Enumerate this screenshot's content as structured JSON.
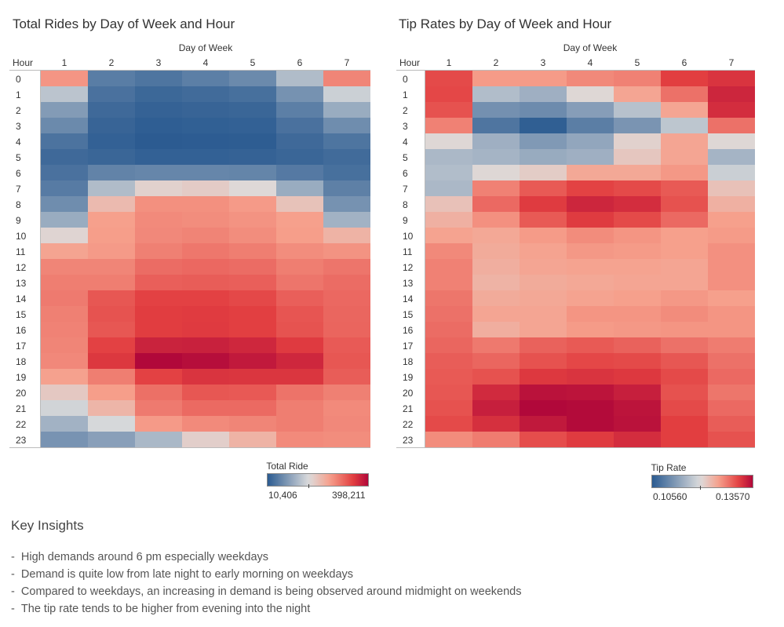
{
  "chart_data": [
    {
      "type": "heatmap",
      "title": "Total Rides by Day of Week and Hour",
      "xlabel": "Day of Week",
      "ylabel": "Hour",
      "columns": [
        "1",
        "2",
        "3",
        "4",
        "5",
        "6",
        "7"
      ],
      "rows": [
        "0",
        "1",
        "2",
        "3",
        "4",
        "5",
        "6",
        "7",
        "8",
        "9",
        "10",
        "11",
        "12",
        "13",
        "14",
        "15",
        "16",
        "17",
        "18",
        "19",
        "20",
        "21",
        "22",
        "23"
      ],
      "values": [
        [
          260000,
          52000,
          42000,
          55000,
          68000,
          130000,
          275000
        ],
        [
          140000,
          38000,
          26000,
          30000,
          36000,
          78000,
          155000
        ],
        [
          90000,
          28000,
          19000,
          22000,
          24000,
          55000,
          110000
        ],
        [
          68000,
          22000,
          14000,
          16000,
          18000,
          38000,
          72000
        ],
        [
          40000,
          18000,
          11000,
          12000,
          13000,
          28000,
          42000
        ],
        [
          28000,
          24000,
          18000,
          18000,
          19000,
          24000,
          30000
        ],
        [
          38000,
          60000,
          64000,
          64000,
          62000,
          48000,
          36000
        ],
        [
          50000,
          130000,
          185000,
          192000,
          175000,
          110000,
          56000
        ],
        [
          72000,
          215000,
          265000,
          265000,
          255000,
          205000,
          78000
        ],
        [
          110000,
          250000,
          270000,
          268000,
          262000,
          250000,
          118000
        ],
        [
          180000,
          252000,
          272000,
          276000,
          268000,
          252000,
          225000
        ],
        [
          245000,
          255000,
          280000,
          288000,
          282000,
          268000,
          262000
        ],
        [
          275000,
          275000,
          298000,
          302000,
          298000,
          282000,
          290000
        ],
        [
          282000,
          282000,
          310000,
          312000,
          310000,
          290000,
          298000
        ],
        [
          285000,
          318000,
          338000,
          338000,
          332000,
          310000,
          302000
        ],
        [
          280000,
          322000,
          342000,
          344000,
          340000,
          320000,
          304000
        ],
        [
          278000,
          318000,
          342000,
          345000,
          340000,
          322000,
          305000
        ],
        [
          275000,
          338000,
          370000,
          372000,
          365000,
          345000,
          315000
        ],
        [
          272000,
          348000,
          398211,
          392000,
          380000,
          365000,
          318000
        ],
        [
          248000,
          282000,
          338000,
          352000,
          350000,
          350000,
          312000
        ],
        [
          196000,
          252000,
          295000,
          318000,
          316000,
          292000,
          280000
        ],
        [
          160000,
          222000,
          285000,
          300000,
          300000,
          282000,
          270000
        ],
        [
          118000,
          165000,
          255000,
          270000,
          275000,
          282000,
          272000
        ],
        [
          80000,
          95000,
          125000,
          188000,
          225000,
          270000,
          268000
        ]
      ],
      "legend": {
        "title": "Total Ride",
        "min": 10406,
        "max": 398211,
        "min_label": "10,406",
        "max_label": "398,211",
        "mid": 170000
      },
      "colors": {
        "low": "#2b5b91",
        "mid": "#dcdcdc",
        "high": "#b1083a"
      }
    },
    {
      "type": "heatmap",
      "title": "Tip Rates by Day of Week and Hour",
      "xlabel": "Day of Week",
      "ylabel": "Hour",
      "columns": [
        "1",
        "2",
        "3",
        "4",
        "5",
        "6",
        "7"
      ],
      "rows": [
        "0",
        "1",
        "2",
        "3",
        "4",
        "5",
        "6",
        "7",
        "8",
        "9",
        "10",
        "11",
        "12",
        "13",
        "14",
        "15",
        "16",
        "17",
        "18",
        "19",
        "20",
        "21",
        "22",
        "23"
      ],
      "values": [
        [
          0.131,
          0.1258,
          0.1258,
          0.127,
          0.1275,
          0.1318,
          0.1325
        ],
        [
          0.1312,
          0.1165,
          0.115,
          0.1205,
          0.125,
          0.1285,
          0.1335
        ],
        [
          0.1305,
          0.1115,
          0.111,
          0.113,
          0.117,
          0.125,
          0.133
        ],
        [
          0.1275,
          0.1085,
          0.106,
          0.1095,
          0.112,
          0.1175,
          0.1285
        ],
        [
          0.1205,
          0.115,
          0.1125,
          0.114,
          0.121,
          0.125,
          0.1205
        ],
        [
          0.116,
          0.1155,
          0.1145,
          0.115,
          0.122,
          0.125,
          0.1155
        ],
        [
          0.1165,
          0.1205,
          0.1215,
          0.1248,
          0.1248,
          0.126,
          0.1185
        ],
        [
          0.116,
          0.1275,
          0.13,
          0.1315,
          0.131,
          0.13,
          0.1225
        ],
        [
          0.1225,
          0.129,
          0.132,
          0.1335,
          0.133,
          0.1305,
          0.124
        ],
        [
          0.124,
          0.1265,
          0.13,
          0.132,
          0.131,
          0.129,
          0.1255
        ],
        [
          0.1252,
          0.1248,
          0.1258,
          0.1268,
          0.1262,
          0.1255,
          0.1258
        ],
        [
          0.127,
          0.1245,
          0.1252,
          0.126,
          0.1258,
          0.1255,
          0.1265
        ],
        [
          0.1275,
          0.1242,
          0.125,
          0.1252,
          0.1252,
          0.125,
          0.1265
        ],
        [
          0.1275,
          0.1238,
          0.1245,
          0.1248,
          0.125,
          0.125,
          0.1265
        ],
        [
          0.1282,
          0.1245,
          0.1248,
          0.1252,
          0.1255,
          0.126,
          0.1255
        ],
        [
          0.1285,
          0.125,
          0.125,
          0.1262,
          0.1262,
          0.1268,
          0.1262
        ],
        [
          0.1288,
          0.1242,
          0.125,
          0.1258,
          0.126,
          0.1262,
          0.1262
        ],
        [
          0.1292,
          0.128,
          0.1295,
          0.13,
          0.1295,
          0.1285,
          0.1278
        ],
        [
          0.1298,
          0.1292,
          0.1305,
          0.1312,
          0.131,
          0.1302,
          0.1285
        ],
        [
          0.13,
          0.1305,
          0.1322,
          0.1325,
          0.1322,
          0.131,
          0.129
        ],
        [
          0.1302,
          0.1332,
          0.135,
          0.1348,
          0.134,
          0.1305,
          0.1282
        ],
        [
          0.1305,
          0.134,
          0.1357,
          0.1355,
          0.1348,
          0.131,
          0.129
        ],
        [
          0.131,
          0.1328,
          0.1345,
          0.1355,
          0.135,
          0.1318,
          0.1298
        ],
        [
          0.1268,
          0.1278,
          0.1308,
          0.132,
          0.133,
          0.1318,
          0.1305
        ]
      ],
      "legend": {
        "title": "Tip Rate",
        "min": 0.1056,
        "max": 0.1357,
        "min_label": "0.10560",
        "max_label": "0.13570",
        "mid": 0.12
      },
      "colors": {
        "low": "#2b5b91",
        "mid": "#dcdcdc",
        "high": "#b1083a"
      }
    }
  ],
  "insights": {
    "title": "Key Insights",
    "items": [
      "High demands around 6 pm especially weekdays",
      "Demand is quite low from late night to early morning on weekdays",
      "Compared to weekdays, an increasing in demand is being observed around midmight on weekends",
      "The tip rate tends to be higher from evening into the night"
    ],
    "bullet": "-"
  }
}
